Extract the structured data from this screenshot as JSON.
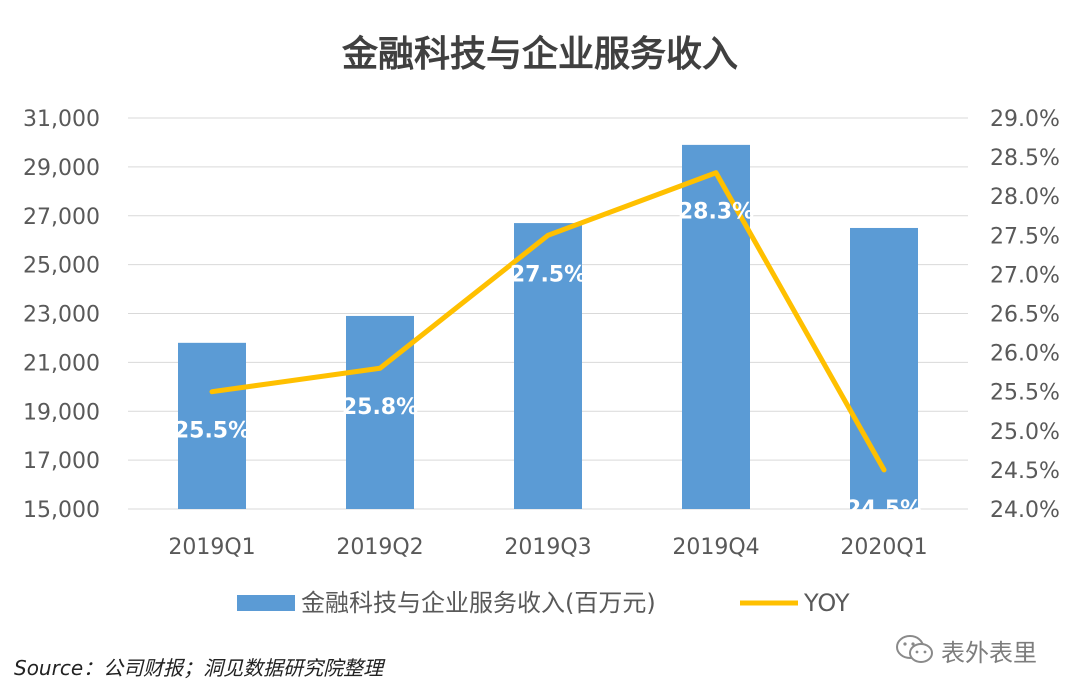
{
  "colors": {
    "bar": "#5b9bd5",
    "line": "#ffc000",
    "grid": "#d9d9d9",
    "axis_text": "#595959",
    "title": "#404040",
    "bar_label": "#ffffff"
  },
  "chart_data": {
    "type": "bar",
    "title": "金融科技与企业服务收入",
    "categories": [
      "2019Q1",
      "2019Q2",
      "2019Q3",
      "2019Q4",
      "2020Q1"
    ],
    "series": [
      {
        "name": "金融科技与企业服务收入(百万元)",
        "type": "bar",
        "axis": "left",
        "values": [
          21800,
          22900,
          26700,
          29900,
          26500
        ]
      },
      {
        "name": "YOY",
        "type": "line",
        "axis": "right",
        "values": [
          25.5,
          25.8,
          27.5,
          28.3,
          24.5
        ],
        "labels": [
          "25.5%",
          "25.8%",
          "27.5%",
          "28.3%",
          "24.5%"
        ]
      }
    ],
    "y_left": {
      "min": 15000,
      "max": 31000,
      "ticks": [
        15000,
        17000,
        19000,
        21000,
        23000,
        25000,
        27000,
        29000,
        31000
      ],
      "tick_labels": [
        "15,000",
        "17,000",
        "19,000",
        "21,000",
        "23,000",
        "25,000",
        "27,000",
        "29,000",
        "31,000"
      ]
    },
    "y_right": {
      "min": 24.0,
      "max": 29.0,
      "ticks": [
        24.0,
        24.5,
        25.0,
        25.5,
        26.0,
        26.5,
        27.0,
        27.5,
        28.0,
        28.5,
        29.0
      ],
      "tick_labels": [
        "24.0%",
        "24.5%",
        "25.0%",
        "25.5%",
        "26.0%",
        "26.5%",
        "27.0%",
        "27.5%",
        "28.0%",
        "28.5%",
        "29.0%"
      ]
    },
    "grid": true,
    "legend": "bottom"
  },
  "source": "Source：公司财报；洞见数据研究院整理",
  "watermark": {
    "icon": "wechat-icon",
    "text": "表外表里"
  }
}
